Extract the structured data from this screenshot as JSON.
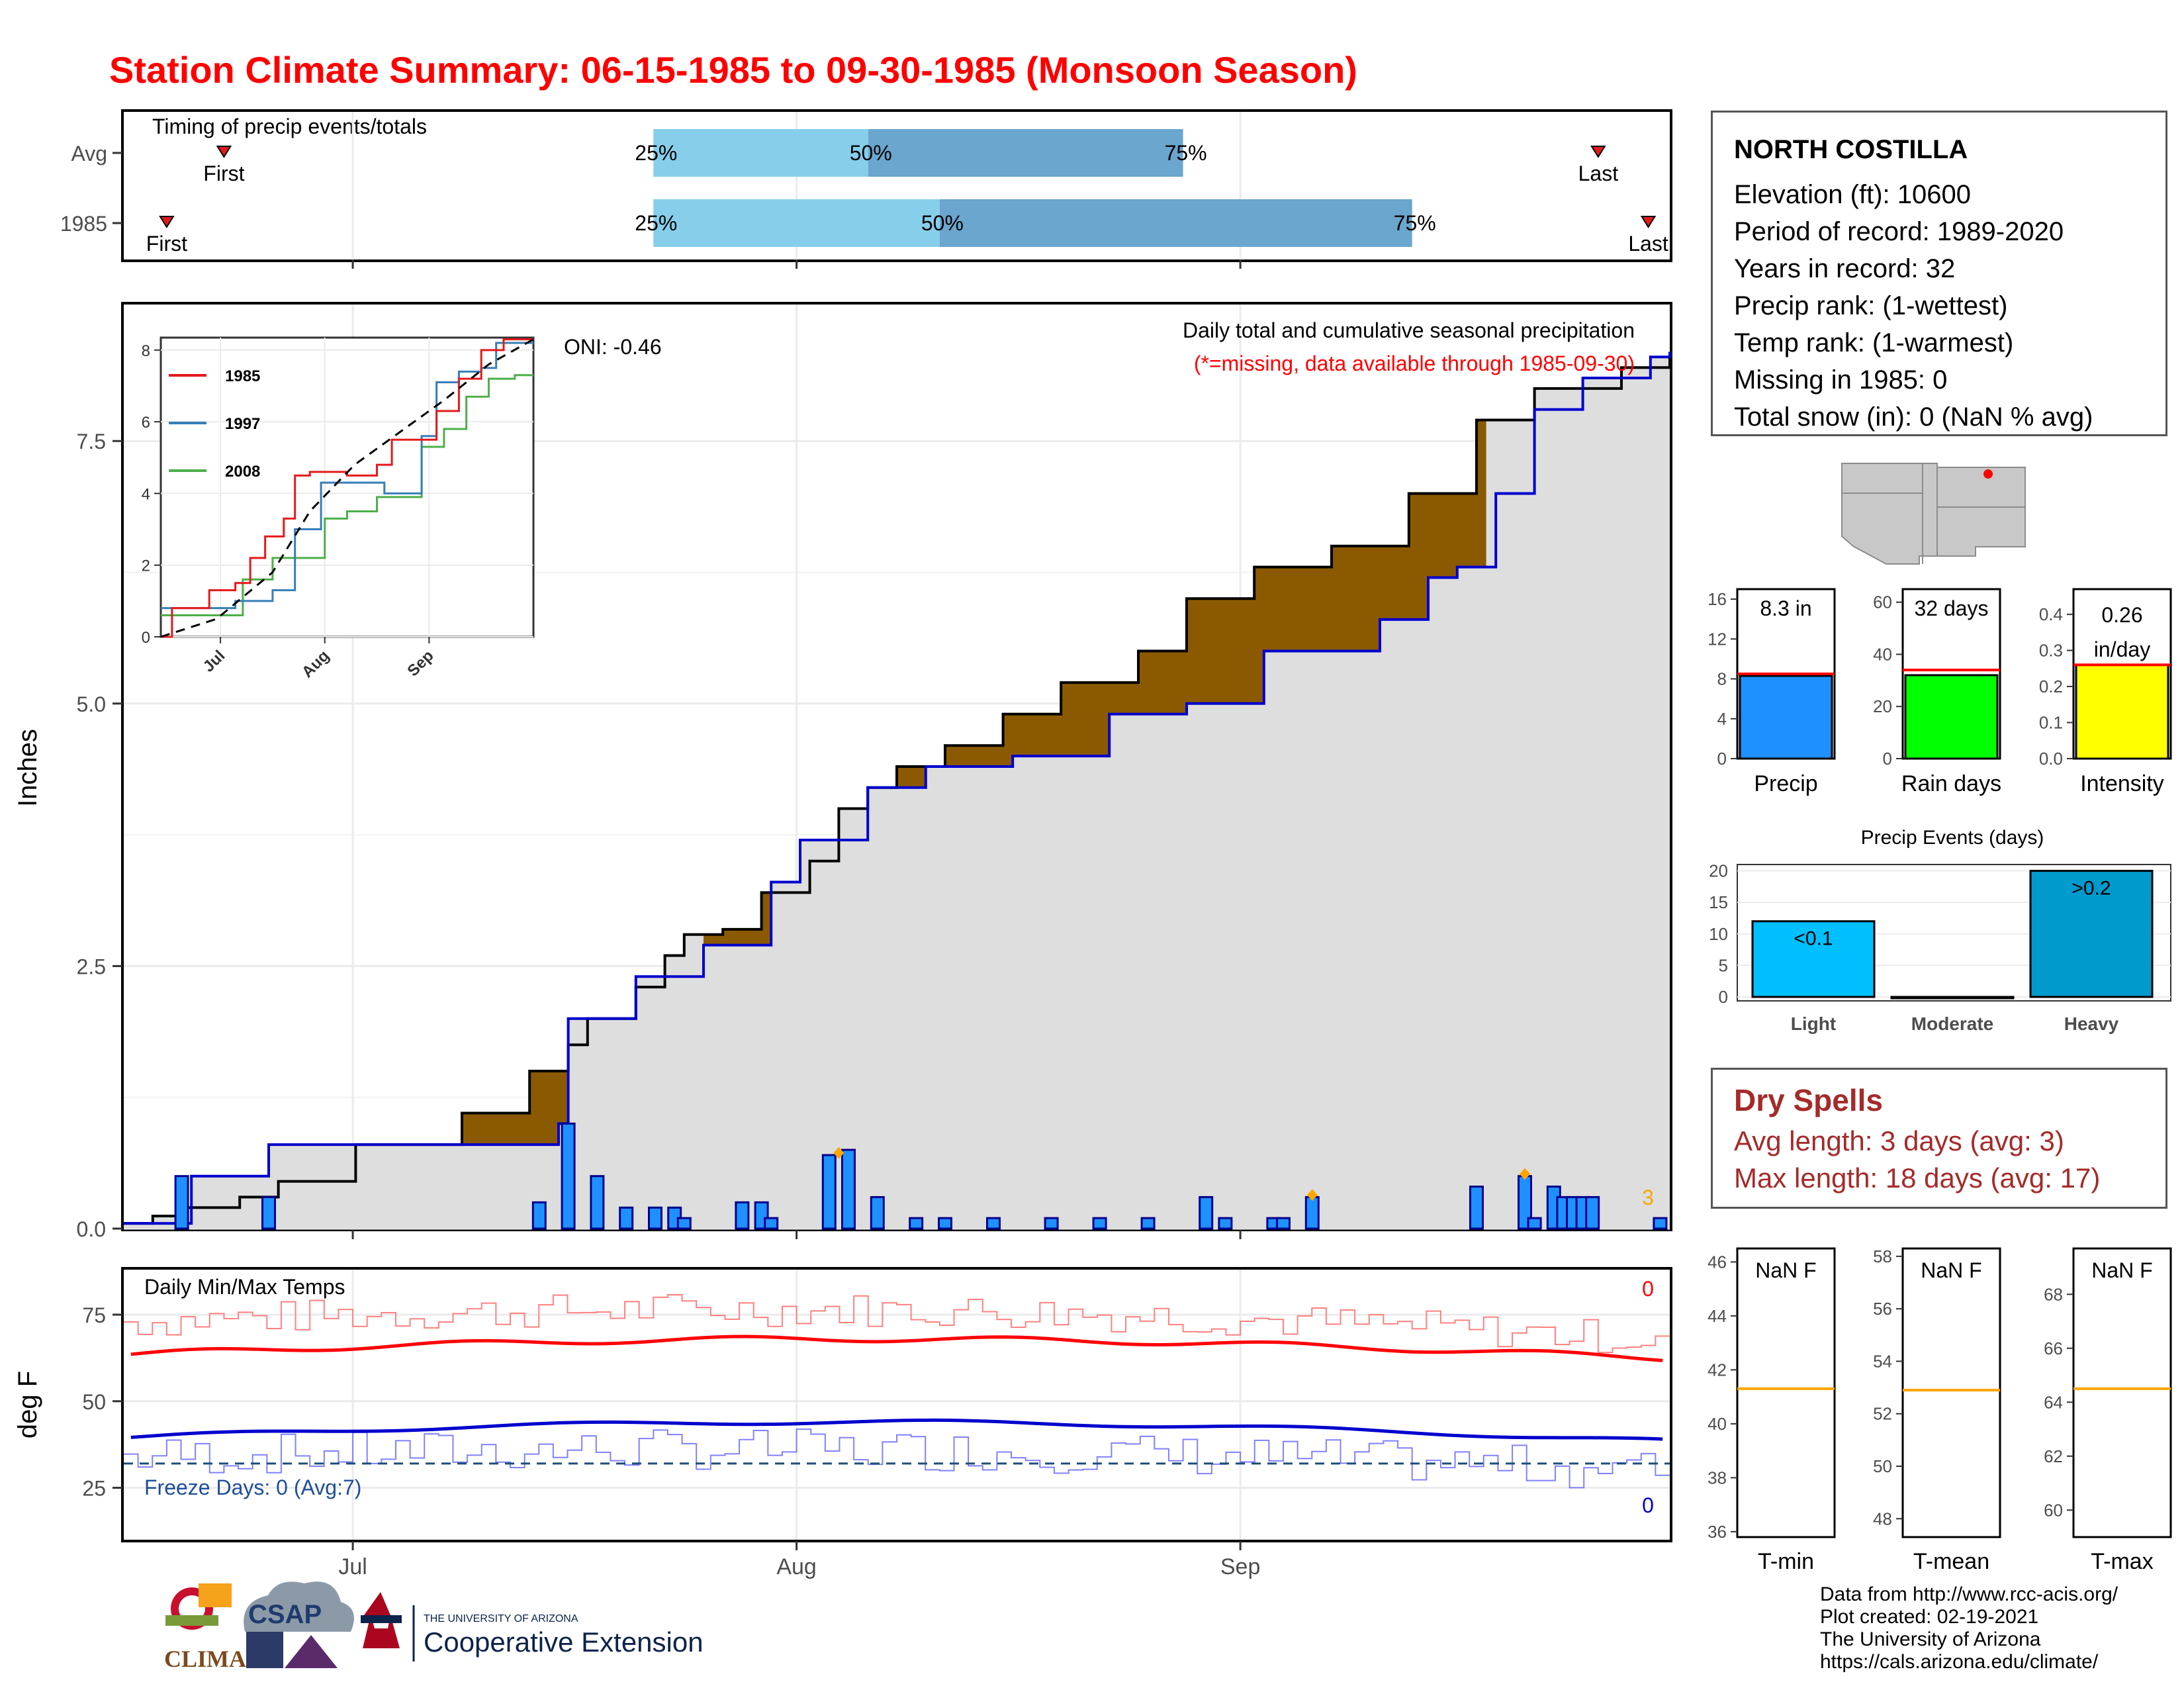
{
  "title": "Station Climate Summary: 06-15-1985 to 09-30-1985 (Monsoon Season)",
  "colors": {
    "title": "#ff0000",
    "q_light": "#87ceeb",
    "q_dark": "#6aa6cd",
    "above": "#008000",
    "below": "#8b5a00",
    "cum_fill": "#dedede",
    "bar": "#1e90ff",
    "tmax": "#ff0000",
    "tmin": "#0000cd",
    "avg_line": "#ffa500"
  },
  "timing": {
    "label": "Timing of precip events/totals",
    "rows": [
      {
        "name": "Avg",
        "first_label": "First",
        "last_label": "Last",
        "first": "06-22",
        "last": "09-26",
        "q25": "07-22",
        "q50": "08-06",
        "q75": "08-28"
      },
      {
        "name": "1985",
        "first_label": "First",
        "last_label": "Last",
        "first": "06-18",
        "last": "09-30",
        "q25": "07-22",
        "q50": "08-11",
        "q75": "09-13"
      }
    ],
    "q_labels": [
      "25%",
      "50%",
      "75%"
    ]
  },
  "main": {
    "ylabel": "Inches",
    "title": "Daily total and cumulative seasonal precipitation",
    "subtitle": "(*=missing, data available through 1985-09-30)",
    "oni": "ONI: -0.46",
    "corner_count": "3",
    "xticks": [
      "Jul",
      "Aug",
      "Sep"
    ]
  },
  "temps": {
    "label": "Daily Min/Max Temps",
    "ylabel": "deg F",
    "freeze": "Freeze Days: 0 (Avg:7)",
    "max_count": "0",
    "min_count": "0"
  },
  "station": {
    "name": "NORTH COSTILLA",
    "lines": [
      "Elevation (ft): 10600",
      "Period of record: 1989-2020",
      "Years in record: 32",
      "Precip rank:  (1-wettest)",
      "Temp rank:  (1-warmest)",
      "Missing in 1985: 0",
      "Total snow (in): 0 (NaN % avg)"
    ]
  },
  "summary_bars": [
    {
      "label": "Precip",
      "value_text": "8.3 in",
      "value": 8.3,
      "avg": 8.5,
      "color": "#1e90ff",
      "ticks": [
        "0",
        "4",
        "8",
        "12",
        "16"
      ],
      "ymax": 17
    },
    {
      "label": "Rain days",
      "value_text": "32 days",
      "value": 32,
      "avg": 34,
      "color": "#00ff00",
      "ticks": [
        "0",
        "20",
        "40",
        "60"
      ],
      "ymax": 65
    },
    {
      "label": "Intensity",
      "value_text": "0.26 in/day",
      "value_line1": "0.26",
      "value_line2": "in/day",
      "value": 0.26,
      "avg": 0.26,
      "color": "#ffff00",
      "ticks": [
        "0.0",
        "0.1",
        "0.2",
        "0.3",
        "0.4"
      ],
      "ymax": 0.47
    }
  ],
  "events": {
    "title": "Precip Events (days)",
    "categories": [
      "Light",
      "Moderate",
      "Heavy"
    ],
    "values": [
      12,
      0,
      20
    ],
    "labels": [
      "<0.1",
      "",
      ">0.2"
    ],
    "colors": [
      "#00bfff",
      "#1e90ff",
      "#009acd"
    ],
    "ticks": [
      "0",
      "5",
      "10",
      "15",
      "20"
    ]
  },
  "dry_spells": {
    "title": "Dry Spells",
    "avg_line": "Avg length: 3 days (avg: 3)",
    "max_line": "Max length: 18 days (avg: 17)"
  },
  "temp_bars": [
    {
      "label": "T-min",
      "value_text": "NaN F",
      "avg": 41.3,
      "ticks": [
        "36",
        "38",
        "40",
        "42",
        "44",
        "46"
      ],
      "ymin": 35.8,
      "ymax": 46.5
    },
    {
      "label": "T-mean",
      "value_text": "NaN F",
      "avg": 52.9,
      "ticks": [
        "48",
        "50",
        "52",
        "54",
        "56",
        "58"
      ],
      "ymin": 47.3,
      "ymax": 58.3
    },
    {
      "label": "T-max",
      "value_text": "NaN F",
      "avg": 64.5,
      "ticks": [
        "60",
        "62",
        "64",
        "66",
        "68"
      ],
      "ymin": 59.0,
      "ymax": 69.7
    }
  ],
  "credits": [
    "Data from http://www.rcc-acis.org/",
    "Plot created: 02-19-2021",
    "The University of Arizona",
    "https://cals.arizona.edu/climate/"
  ],
  "logos": {
    "climas": "CLIMAS",
    "csap": "CSAP",
    "ua_small": "THE UNIVERSITY OF ARIZONA",
    "ua_big": "Cooperative Extension"
  },
  "chart_data": [
    {
      "type": "area",
      "title": "Daily total and cumulative seasonal precipitation",
      "ylabel": "Inches",
      "ylim": [
        0,
        8.8
      ],
      "yticks": [
        0.0,
        2.5,
        5.0,
        7.5
      ],
      "x_start": "06-15",
      "x_end": "09-30",
      "cumulative_1985": [
        [
          0,
          0.05
        ],
        [
          3,
          0.12
        ],
        [
          6,
          0.2
        ],
        [
          12,
          0.3
        ],
        [
          16,
          0.45
        ],
        [
          24,
          0.8
        ],
        [
          35,
          1.1
        ],
        [
          42,
          1.5
        ],
        [
          46,
          1.75
        ],
        [
          48,
          2.0
        ],
        [
          53,
          2.3
        ],
        [
          56,
          2.6
        ],
        [
          58,
          2.8
        ],
        [
          62,
          2.85
        ],
        [
          66,
          3.2
        ],
        [
          71,
          3.5
        ],
        [
          74,
          4.0
        ],
        [
          77,
          4.2
        ],
        [
          80,
          4.4
        ],
        [
          85,
          4.6
        ],
        [
          91,
          4.9
        ],
        [
          97,
          5.2
        ],
        [
          105,
          5.5
        ],
        [
          110,
          6.0
        ],
        [
          117,
          6.3
        ],
        [
          125,
          6.5
        ],
        [
          133,
          7.0
        ],
        [
          140,
          7.7
        ],
        [
          146,
          8.0
        ],
        [
          155,
          8.2
        ],
        [
          160,
          8.3
        ]
      ],
      "cumulative_avg": [
        [
          0,
          0.05
        ],
        [
          7,
          0.5
        ],
        [
          15,
          0.8
        ],
        [
          26,
          0.8
        ],
        [
          45,
          1.0
        ],
        [
          46,
          2.0
        ],
        [
          53,
          2.4
        ],
        [
          60,
          2.7
        ],
        [
          67,
          3.3
        ],
        [
          70,
          3.7
        ],
        [
          77,
          4.2
        ],
        [
          83,
          4.4
        ],
        [
          92,
          4.5
        ],
        [
          102,
          4.9
        ],
        [
          110,
          5.0
        ],
        [
          118,
          5.5
        ],
        [
          130,
          5.8
        ],
        [
          135,
          6.2
        ],
        [
          138,
          6.3
        ],
        [
          142,
          7.0
        ],
        [
          146,
          7.8
        ],
        [
          151,
          8.1
        ],
        [
          158,
          8.3
        ],
        [
          160,
          8.35
        ]
      ],
      "daily_bars": [
        [
          6,
          0.5
        ],
        [
          15,
          0.3
        ],
        [
          43,
          0.25
        ],
        [
          46,
          1.0
        ],
        [
          49,
          0.5
        ],
        [
          52,
          0.2
        ],
        [
          55,
          0.2
        ],
        [
          57,
          0.2
        ],
        [
          58,
          0.1
        ],
        [
          64,
          0.25
        ],
        [
          66,
          0.25
        ],
        [
          67,
          0.1
        ],
        [
          73,
          0.7
        ],
        [
          75,
          0.75
        ],
        [
          78,
          0.3
        ],
        [
          82,
          0.1
        ],
        [
          85,
          0.1
        ],
        [
          90,
          0.1
        ],
        [
          96,
          0.1
        ],
        [
          101,
          0.1
        ],
        [
          106,
          0.1
        ],
        [
          112,
          0.3
        ],
        [
          114,
          0.1
        ],
        [
          119,
          0.1
        ],
        [
          120,
          0.1
        ],
        [
          123,
          0.3
        ],
        [
          140,
          0.4
        ],
        [
          145,
          0.5
        ],
        [
          146,
          0.1
        ],
        [
          148,
          0.4
        ],
        [
          149,
          0.3
        ],
        [
          150,
          0.3
        ],
        [
          151,
          0.3
        ],
        [
          152,
          0.3
        ],
        [
          159,
          0.1
        ]
      ],
      "diamonds": [
        [
          74,
          0.72
        ],
        [
          123,
          0.32
        ],
        [
          145,
          0.52
        ]
      ]
    },
    {
      "type": "line",
      "title": "",
      "series": [
        {
          "name": "1985"
        },
        {
          "name": "1997"
        },
        {
          "name": "2008"
        }
      ],
      "ylim": [
        0,
        8.2
      ],
      "yticks": [
        0,
        2,
        4,
        6,
        8
      ],
      "xticks": [
        "Jul",
        "Aug",
        "Sep"
      ]
    },
    {
      "type": "line",
      "title": "Daily Min/Max Temps",
      "ylabel": "deg F",
      "ylim": [
        10,
        88
      ],
      "yticks": [
        25,
        50,
        75
      ],
      "freeze_line": 32,
      "series": [
        {
          "values": "tmax_avg"
        },
        {
          "values": "tmin_avg"
        },
        {
          "values": "tmax_daily"
        },
        {
          "values": "tmin_daily"
        }
      ]
    }
  ]
}
